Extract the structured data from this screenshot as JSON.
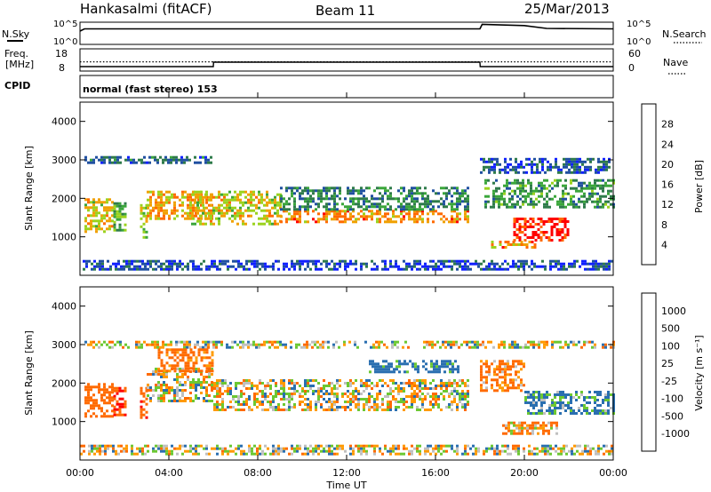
{
  "header": {
    "station": "Hankasalmi (fitACF)",
    "beam": "Beam 11",
    "date": "25/Mar/2013"
  },
  "panel_noise": {
    "left_label": "N.Sky",
    "left_ticks": [
      "10^5",
      "10^0"
    ],
    "right_label": "N.Search",
    "right_ticks": [
      "10^5",
      "10^0"
    ]
  },
  "panel_freq": {
    "left_label_line1": "Freq.",
    "left_label_line2": "[MHz]",
    "left_ticks": [
      "18",
      "8"
    ],
    "right_label": "Nave",
    "right_ticks": [
      "60",
      "0"
    ]
  },
  "panel_cpid": {
    "label": "CPID",
    "program": "normal (fast stereo) 153"
  },
  "x_axis": {
    "label": "Time UT",
    "ticks": [
      "00:00",
      "04:00",
      "08:00",
      "12:00",
      "16:00",
      "20:00",
      "00:00"
    ]
  },
  "panel_power": {
    "ylabel": "Slant Range [km]",
    "yticks": [
      "1000",
      "2000",
      "3000",
      "4000"
    ],
    "colorbar_label": "Power [dB]",
    "colorbar_ticks": [
      "4",
      "8",
      "12",
      "16",
      "20",
      "24",
      "28"
    ]
  },
  "panel_velocity": {
    "ylabel": "Slant Range [km]",
    "yticks": [
      "1000",
      "2000",
      "3000",
      "4000"
    ],
    "colorbar_label": "Velocity [m s⁻¹]",
    "colorbar_ticks": [
      "1000",
      "500",
      "100",
      "25",
      "-25",
      "-100",
      "-500",
      "-1000"
    ]
  },
  "colors": {
    "power_scale": [
      "#1020ff",
      "#1f4fa0",
      "#2e7b4a",
      "#3aa63a",
      "#9bd21e",
      "#f0a000",
      "#ff6a00",
      "#ff0000"
    ],
    "velocity_scale": [
      "#1a2e9c",
      "#2a6fb0",
      "#2e8c3c",
      "#6cc832",
      "#c8c8c8",
      "#ff9a00",
      "#ff6a00",
      "#ff0000"
    ],
    "ground_scatter": "#c0c0c0"
  },
  "chart_data": [
    {
      "type": "line",
      "title": "N.Sky / N.Search",
      "x_range_hours": [
        0,
        24
      ],
      "series": [
        {
          "name": "N.Sky",
          "x": [
            0,
            0.2,
            18,
            18.1,
            20,
            21,
            24
          ],
          "y_level": [
            0.6,
            0.7,
            0.7,
            0.9,
            0.85,
            0.72,
            0.7
          ]
        }
      ]
    },
    {
      "type": "line",
      "title": "Freq. / Nave",
      "x_range_hours": [
        0,
        24
      ],
      "series": [
        {
          "name": "Freq. (MHz)",
          "x": [
            0,
            6,
            6.01,
            18,
            18.01,
            24
          ],
          "y": [
            10,
            10,
            12,
            12,
            10,
            10
          ]
        },
        {
          "name": "Nave",
          "x": [
            0,
            24
          ],
          "y": [
            25,
            25
          ]
        }
      ]
    },
    {
      "type": "heatmap",
      "title": "Power [dB]",
      "x_range_hours": [
        0,
        24
      ],
      "y_range_km": [
        0,
        4500
      ],
      "value_range": [
        0,
        30
      ],
      "regions": [
        {
          "t": [
            0.2,
            1.5
          ],
          "r": [
            1100,
            2000
          ],
          "p": 20
        },
        {
          "t": [
            1.5,
            2.0
          ],
          "r": [
            1200,
            1900
          ],
          "p": 14
        },
        {
          "t": [
            2.7,
            3.0
          ],
          "r": [
            1000,
            1850
          ],
          "p": 18
        },
        {
          "t": [
            3.0,
            6.0
          ],
          "r": [
            1500,
            2200
          ],
          "p": 22
        },
        {
          "t": [
            0.2,
            6.0
          ],
          "r": [
            2900,
            3100
          ],
          "p": 8
        },
        {
          "t": [
            5.0,
            9.0
          ],
          "r": [
            1300,
            2200
          ],
          "p": 20
        },
        {
          "t": [
            9.0,
            17.5
          ],
          "r": [
            1400,
            1700
          ],
          "p": 24
        },
        {
          "t": [
            9.0,
            17.5
          ],
          "r": [
            1700,
            2300
          ],
          "p": 10
        },
        {
          "t": [
            18.2,
            24
          ],
          "r": [
            1800,
            2500
          ],
          "p": 12
        },
        {
          "t": [
            19.5,
            22.0
          ],
          "r": [
            900,
            1500
          ],
          "p": 30
        },
        {
          "t": [
            18.5,
            20.5
          ],
          "r": [
            700,
            900
          ],
          "p": 24
        },
        {
          "t": [
            18.0,
            23.8
          ],
          "r": [
            2700,
            3050
          ],
          "p": 6
        },
        {
          "t": [
            0,
            24
          ],
          "r": [
            150,
            400
          ],
          "p": 5
        }
      ]
    },
    {
      "type": "heatmap",
      "title": "Velocity [m s⁻¹]",
      "x_range_hours": [
        0,
        24
      ],
      "y_range_km": [
        0,
        4500
      ],
      "value_range": [
        -1000,
        1000
      ],
      "regions": [
        {
          "t": [
            0.2,
            1.5
          ],
          "r": [
            1100,
            2000
          ],
          "v": -300
        },
        {
          "t": [
            1.5,
            2.0
          ],
          "r": [
            1200,
            1900
          ],
          "v": -500
        },
        {
          "t": [
            2.7,
            3.0
          ],
          "r": [
            1100,
            1900
          ],
          "v": -400
        },
        {
          "t": [
            3.0,
            6.0
          ],
          "r": [
            1500,
            2400
          ],
          "v": 0
        },
        {
          "t": [
            6.0,
            17.5
          ],
          "r": [
            1300,
            2100
          ],
          "v": 0
        },
        {
          "t": [
            0.2,
            24
          ],
          "r": [
            2900,
            3100
          ],
          "v": 0
        },
        {
          "t": [
            3.5,
            6.0
          ],
          "r": [
            2300,
            2900
          ],
          "v": -200
        },
        {
          "t": [
            13.0,
            17.0
          ],
          "r": [
            2300,
            2600
          ],
          "v": 200
        },
        {
          "t": [
            18.0,
            20.0
          ],
          "r": [
            1800,
            2600
          ],
          "v": -150
        },
        {
          "t": [
            20.0,
            24.0
          ],
          "r": [
            1200,
            1800
          ],
          "v": 150
        },
        {
          "t": [
            19.0,
            21.5
          ],
          "r": [
            700,
            1000
          ],
          "v": -100
        },
        {
          "t": [
            0,
            24
          ],
          "r": [
            150,
            400
          ],
          "v": 0
        }
      ]
    }
  ]
}
